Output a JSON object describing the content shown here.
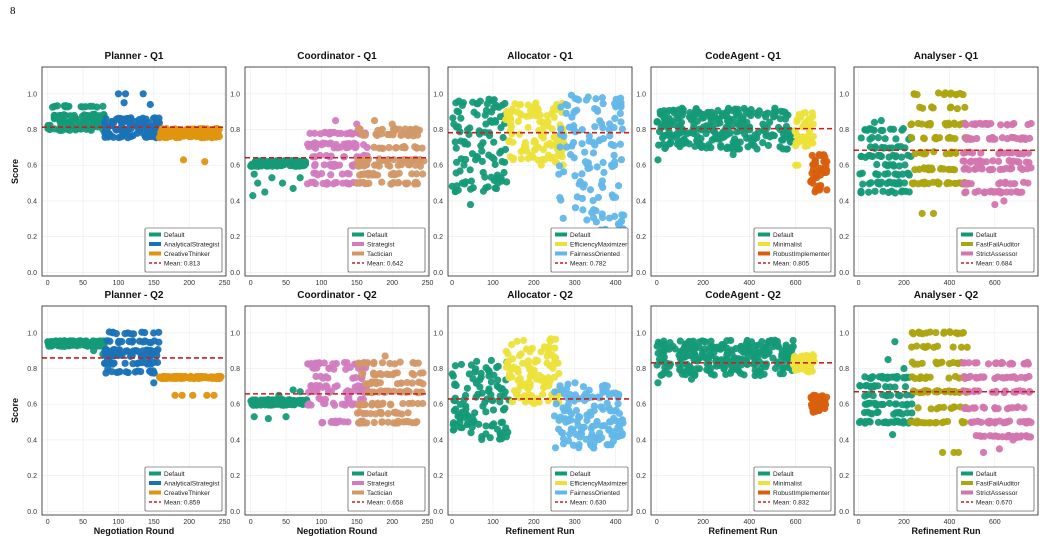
{
  "page_number": "8",
  "ylabel": "Score",
  "colors": {
    "Default": "#159a78",
    "AnalyticalStrategist": "#1a72b6",
    "CreativeThinker": "#e0930f",
    "Strategist": "#d27cc0",
    "Tactician": "#d39868",
    "EfficiencyMaximizer": "#ece13a",
    "FairnessOriented": "#62b7e8",
    "Minimalist": "#ece13a",
    "RobustImplementer": "#d95f0e",
    "FastFailAuditor": "#aca40e",
    "StrictAssessor": "#d376ae",
    "mean_line": "#cc1f1f"
  },
  "chart_data": [
    {
      "type": "scatter",
      "title": "Planner - Q1",
      "xlabel": "",
      "ylabel": "Score",
      "xlim": [
        -8,
        252
      ],
      "xticks": [
        0,
        50,
        100,
        150,
        200,
        250
      ],
      "ylim": [
        -0.02,
        1.15
      ],
      "yticks": [
        0.0,
        0.2,
        0.4,
        0.6,
        0.8,
        1.0
      ],
      "mean": 0.813,
      "legend": "lower-right",
      "series": [
        {
          "name": "Default",
          "x_range": [
            0,
            80
          ],
          "levels": [
            0.8,
            0.82,
            0.84,
            0.86,
            0.88,
            0.93
          ],
          "points": [
            [
              3,
              0.8
            ],
            [
              10,
              0.93
            ],
            [
              30,
              0.93
            ],
            [
              60,
              0.93
            ],
            [
              78,
              0.93
            ]
          ]
        },
        {
          "name": "AnalyticalStrategist",
          "x_range": [
            80,
            158
          ],
          "levels": [
            0.76,
            0.78,
            0.8,
            0.82,
            0.84,
            0.86
          ],
          "points": [
            [
              100,
              1.0
            ],
            [
              110,
              1.0
            ],
            [
              135,
              1.0
            ],
            [
              108,
              0.95
            ],
            [
              145,
              0.94
            ]
          ]
        },
        {
          "name": "CreativeThinker",
          "x_range": [
            158,
            245
          ],
          "levels": [
            0.76,
            0.78,
            0.8
          ],
          "points": [
            [
              192,
              0.63
            ],
            [
              222,
              0.62
            ]
          ]
        }
      ]
    },
    {
      "type": "scatter",
      "title": "Coordinator - Q1",
      "xlabel": "",
      "ylabel": "",
      "xlim": [
        -8,
        252
      ],
      "xticks": [
        0,
        50,
        100,
        150,
        200,
        250
      ],
      "ylim": [
        -0.02,
        1.15
      ],
      "yticks": [
        0.0,
        0.2,
        0.4,
        0.6,
        0.8,
        1.0
      ],
      "mean": 0.642,
      "legend": "lower-right",
      "series": [
        {
          "name": "Default",
          "x_range": [
            0,
            80
          ],
          "levels": [
            0.62,
            0.6
          ],
          "points": [
            [
              3,
              0.43
            ],
            [
              10,
              0.5
            ],
            [
              20,
              0.45
            ],
            [
              30,
              0.53
            ],
            [
              45,
              0.5
            ],
            [
              60,
              0.47
            ],
            [
              70,
              0.53
            ],
            [
              5,
              0.55
            ]
          ]
        },
        {
          "name": "Strategist",
          "x_range": [
            80,
            165
          ],
          "levels": [
            0.5,
            0.55,
            0.6,
            0.65,
            0.7,
            0.72,
            0.78
          ],
          "points": [
            [
              120,
              0.85
            ],
            [
              150,
              0.83
            ]
          ]
        },
        {
          "name": "Tactician",
          "x_range": [
            150,
            245
          ],
          "levels": [
            0.5,
            0.55,
            0.6,
            0.63,
            0.7,
            0.77,
            0.8
          ],
          "points": [
            [
              175,
              0.85
            ],
            [
              200,
              0.83
            ]
          ]
        }
      ]
    },
    {
      "type": "scatter",
      "title": "Allocator - Q1",
      "xlabel": "",
      "ylabel": "",
      "xlim": [
        -10,
        440
      ],
      "xticks": [
        0,
        100,
        200,
        300,
        400
      ],
      "ylim": [
        -0.02,
        1.15
      ],
      "yticks": [
        0.0,
        0.2,
        0.4,
        0.6,
        0.8,
        1.0
      ],
      "mean": 0.782,
      "legend": "lower-right",
      "series": [
        {
          "name": "Default",
          "x_range": [
            0,
            135
          ],
          "yr": [
            0.45,
            0.97
          ],
          "points": [
            [
              15,
              0.46
            ],
            [
              25,
              0.5
            ],
            [
              45,
              0.38
            ]
          ]
        },
        {
          "name": "EfficiencyMaximizer",
          "x_range": [
            130,
            275
          ],
          "yr": [
            0.6,
            0.95
          ]
        },
        {
          "name": "FairnessOriented",
          "x_range": [
            260,
            420
          ],
          "yr": [
            0.2,
            1.0
          ]
        }
      ]
    },
    {
      "type": "scatter",
      "title": "CodeAgent - Q1",
      "xlabel": "",
      "ylabel": "",
      "xlim": [
        -25,
        770
      ],
      "xticks": [
        0,
        200,
        400,
        600
      ],
      "ylim": [
        -0.02,
        1.15
      ],
      "yticks": [
        0.0,
        0.2,
        0.4,
        0.6,
        0.8,
        1.0
      ],
      "mean": 0.805,
      "legend": "lower-right",
      "series": [
        {
          "name": "Default",
          "x_range": [
            0,
            590
          ],
          "yr": [
            0.69,
            0.92
          ],
          "points": [
            [
              5,
              0.63
            ],
            [
              330,
              0.66
            ],
            [
              560,
              0.69
            ]
          ]
        },
        {
          "name": "Minimalist",
          "x_range": [
            590,
            680
          ],
          "yr": [
            0.7,
            0.9
          ],
          "points": [
            [
              600,
              0.6
            ],
            [
              610,
              0.6
            ]
          ]
        },
        {
          "name": "RobustImplementer",
          "x_range": [
            665,
            735
          ],
          "yr": [
            0.45,
            0.66
          ]
        }
      ]
    },
    {
      "type": "scatter",
      "title": "Analyser - Q1",
      "xlabel": "",
      "ylabel": "",
      "xlim": [
        -20,
        790
      ],
      "xticks": [
        0,
        200,
        400,
        600
      ],
      "ylim": [
        -0.02,
        1.15
      ],
      "yticks": [
        0.0,
        0.2,
        0.4,
        0.6,
        0.8,
        1.0
      ],
      "mean": 0.684,
      "legend": "lower-right",
      "series": [
        {
          "name": "Default",
          "x_range": [
            0,
            235
          ],
          "levels": [
            0.45,
            0.5,
            0.55,
            0.6,
            0.65,
            0.7,
            0.75,
            0.8
          ],
          "points": [
            [
              70,
              0.84
            ],
            [
              100,
              0.85
            ]
          ]
        },
        {
          "name": "FastFailAuditor",
          "x_range": [
            230,
            480
          ],
          "levels": [
            0.5,
            0.58,
            0.67,
            0.75,
            0.83,
            0.92,
            1.0
          ],
          "points": [
            [
              280,
              0.33
            ],
            [
              330,
              0.33
            ]
          ]
        },
        {
          "name": "StrictAssessor",
          "x_range": [
            460,
            760
          ],
          "levels": [
            0.45,
            0.5,
            0.58,
            0.62,
            0.67,
            0.75,
            0.83
          ],
          "points": [
            [
              600,
              0.38
            ],
            [
              640,
              0.4
            ],
            [
              700,
              0.45
            ]
          ]
        }
      ]
    },
    {
      "type": "scatter",
      "title": "Planner - Q2",
      "xlabel": "Negotiation Round",
      "ylabel": "Score",
      "xlim": [
        -8,
        252
      ],
      "xticks": [
        0,
        50,
        100,
        150,
        200,
        250
      ],
      "ylim": [
        -0.02,
        1.15
      ],
      "yticks": [
        0.0,
        0.2,
        0.4,
        0.6,
        0.8,
        1.0
      ],
      "mean": 0.859,
      "legend": "lower-right",
      "series": [
        {
          "name": "Default",
          "x_range": [
            0,
            80
          ],
          "levels": [
            0.93,
            0.95
          ],
          "points": [
            [
              65,
              0.9
            ],
            [
              78,
              0.88
            ]
          ]
        },
        {
          "name": "AnalyticalStrategist",
          "x_range": [
            80,
            158
          ],
          "levels": [
            0.78,
            0.83,
            0.87,
            0.9,
            0.95,
            1.0
          ],
          "points": [
            [
              85,
              0.8
            ],
            [
              150,
              0.72
            ]
          ]
        },
        {
          "name": "CreativeThinker",
          "x_range": [
            158,
            245
          ],
          "levels": [
            0.75
          ],
          "points": [
            [
              180,
              0.65
            ],
            [
              190,
              0.65
            ],
            [
              205,
              0.65
            ],
            [
              225,
              0.65
            ],
            [
              235,
              0.65
            ]
          ]
        }
      ]
    },
    {
      "type": "scatter",
      "title": "Coordinator - Q2",
      "xlabel": "Negotiation Round",
      "ylabel": "",
      "xlim": [
        -8,
        252
      ],
      "xticks": [
        0,
        50,
        100,
        150,
        200,
        250
      ],
      "ylim": [
        -0.02,
        1.15
      ],
      "yticks": [
        0.0,
        0.2,
        0.4,
        0.6,
        0.8,
        1.0
      ],
      "mean": 0.658,
      "legend": "lower-right",
      "series": [
        {
          "name": "Default",
          "x_range": [
            0,
            80
          ],
          "levels": [
            0.62,
            0.6
          ],
          "points": [
            [
              5,
              0.53
            ],
            [
              25,
              0.52
            ],
            [
              40,
              0.65
            ],
            [
              60,
              0.68
            ],
            [
              70,
              0.67
            ],
            [
              50,
              0.53
            ]
          ]
        },
        {
          "name": "Strategist",
          "x_range": [
            80,
            165
          ],
          "levels": [
            0.5,
            0.6,
            0.63,
            0.67,
            0.7,
            0.75,
            0.8,
            0.83
          ],
          "points": []
        },
        {
          "name": "Tactician",
          "x_range": [
            150,
            245
          ],
          "levels": [
            0.5,
            0.55,
            0.6,
            0.67,
            0.72,
            0.77,
            0.83
          ],
          "points": [
            [
              190,
              0.87
            ]
          ]
        }
      ]
    },
    {
      "type": "scatter",
      "title": "Allocator - Q2",
      "xlabel": "Refinement Run",
      "ylabel": "",
      "xlim": [
        -10,
        440
      ],
      "xticks": [
        0,
        100,
        200,
        300,
        400
      ],
      "ylim": [
        -0.02,
        1.15
      ],
      "yticks": [
        0.0,
        0.2,
        0.4,
        0.6,
        0.8,
        1.0
      ],
      "mean": 0.63,
      "legend": "lower-right",
      "series": [
        {
          "name": "Default",
          "x_range": [
            0,
            140
          ],
          "yr": [
            0.4,
            0.85
          ]
        },
        {
          "name": "EfficiencyMaximizer",
          "x_range": [
            130,
            265
          ],
          "yr": [
            0.6,
            0.97
          ]
        },
        {
          "name": "FairnessOriented",
          "x_range": [
            250,
            420
          ],
          "yr": [
            0.35,
            0.72
          ]
        }
      ]
    },
    {
      "type": "scatter",
      "title": "CodeAgent - Q2",
      "xlabel": "Refinement Run",
      "ylabel": "",
      "xlim": [
        -25,
        770
      ],
      "xticks": [
        0,
        200,
        400,
        600
      ],
      "ylim": [
        -0.02,
        1.15
      ],
      "yticks": [
        0.0,
        0.2,
        0.4,
        0.6,
        0.8,
        1.0
      ],
      "mean": 0.832,
      "legend": "lower-right",
      "series": [
        {
          "name": "Default",
          "x_range": [
            0,
            590
          ],
          "yr": [
            0.76,
            0.96
          ],
          "points": [
            [
              5,
              0.72
            ],
            [
              150,
              0.74
            ]
          ]
        },
        {
          "name": "Minimalist",
          "x_range": [
            590,
            680
          ],
          "yr": [
            0.78,
            0.88
          ]
        },
        {
          "name": "RobustImplementer",
          "x_range": [
            665,
            735
          ],
          "yr": [
            0.55,
            0.65
          ]
        }
      ]
    },
    {
      "type": "scatter",
      "title": "Analyser - Q2",
      "xlabel": "Refinement Run",
      "ylabel": "",
      "xlim": [
        -20,
        790
      ],
      "xticks": [
        0,
        200,
        400,
        600
      ],
      "ylim": [
        -0.02,
        1.15
      ],
      "yticks": [
        0.0,
        0.2,
        0.4,
        0.6,
        0.8,
        1.0
      ],
      "mean": 0.67,
      "legend": "lower-right",
      "series": [
        {
          "name": "Default",
          "x_range": [
            0,
            235
          ],
          "levels": [
            0.5,
            0.55,
            0.6,
            0.65,
            0.7,
            0.75
          ],
          "points": [
            [
              130,
              0.85
            ],
            [
              160,
              0.95
            ],
            [
              200,
              0.8
            ],
            [
              150,
              0.43
            ]
          ]
        },
        {
          "name": "FastFailAuditor",
          "x_range": [
            230,
            480
          ],
          "levels": [
            0.5,
            0.58,
            0.67,
            0.75,
            0.83,
            0.92,
            1.0
          ],
          "points": [
            [
              370,
              0.33
            ],
            [
              420,
              0.33
            ],
            [
              440,
              0.33
            ]
          ]
        },
        {
          "name": "StrictAssessor",
          "x_range": [
            460,
            760
          ],
          "levels": [
            0.42,
            0.5,
            0.58,
            0.67,
            0.75,
            0.83
          ],
          "points": [
            [
              550,
              0.33
            ],
            [
              620,
              0.35
            ],
            [
              680,
              0.4
            ]
          ]
        }
      ]
    }
  ],
  "legend_mean_prefix": "Mean: "
}
